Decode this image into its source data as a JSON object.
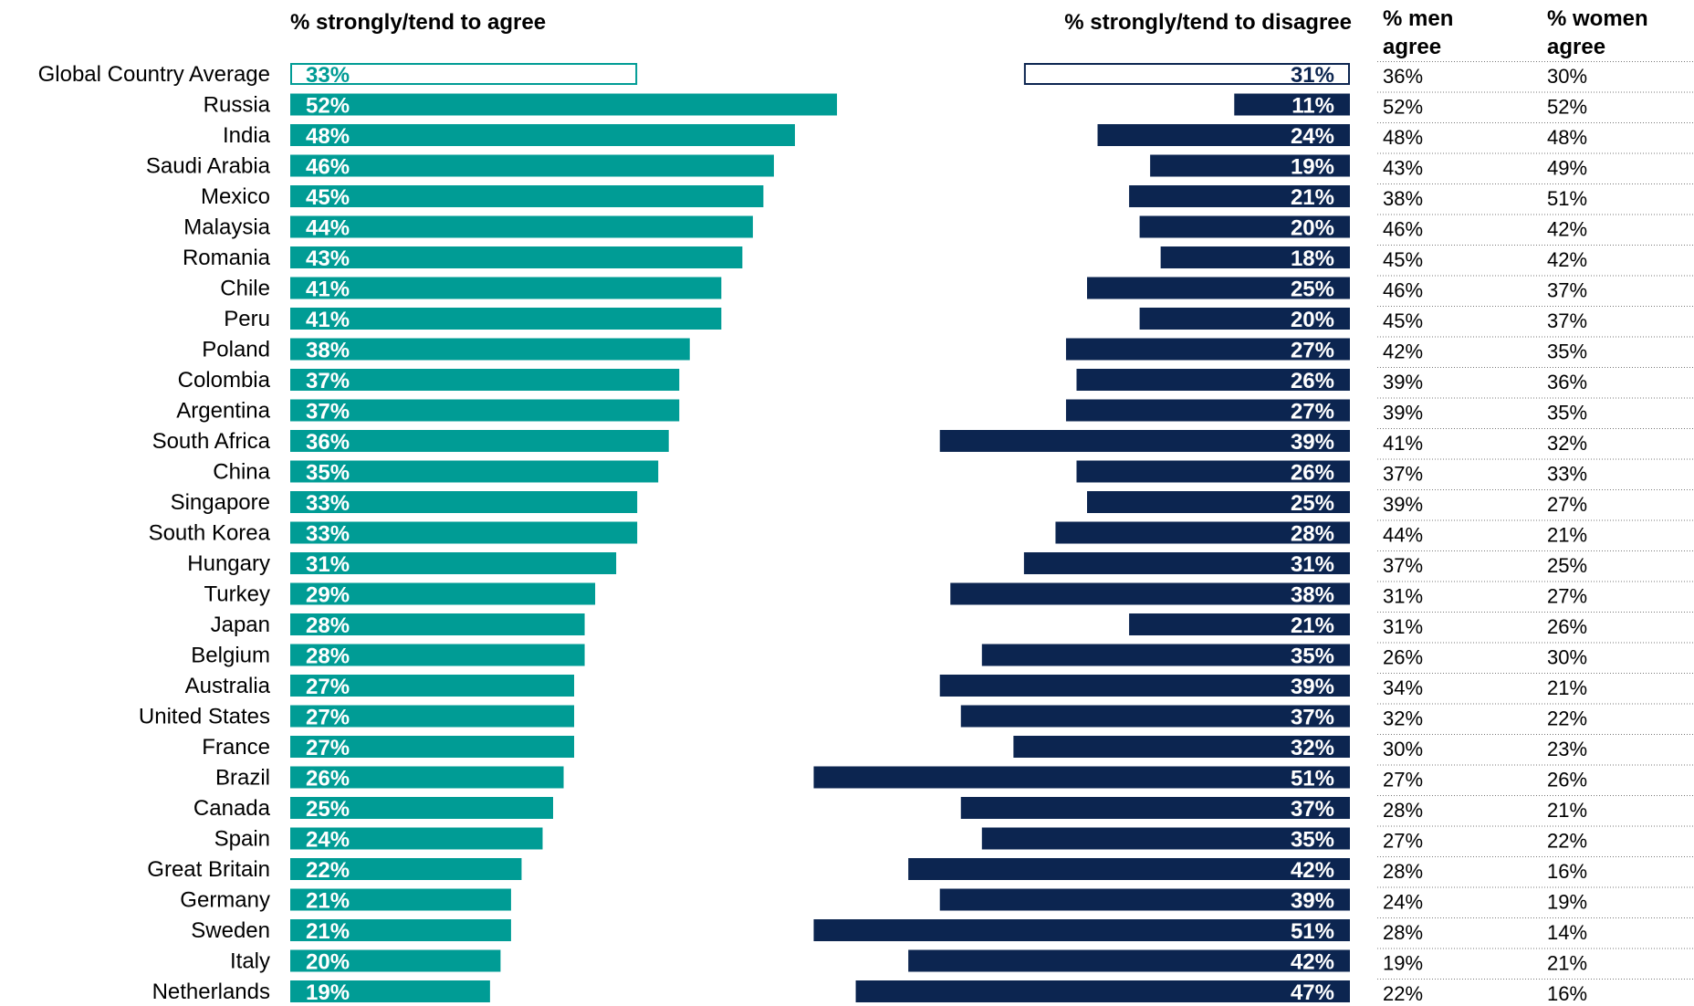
{
  "chart_data": {
    "type": "bar",
    "headers": {
      "agree": "% strongly/tend to agree",
      "disagree": "% strongly/tend to disagree",
      "men": [
        "% men",
        "agree"
      ],
      "women": [
        "% women",
        "agree"
      ]
    },
    "categories": [
      "Global Country Average",
      "Russia",
      "India",
      "Saudi Arabia",
      "Mexico",
      "Malaysia",
      "Romania",
      "Chile",
      "Peru",
      "Poland",
      "Colombia",
      "Argentina",
      "South Africa",
      "China",
      "Singapore",
      "South Korea",
      "Hungary",
      "Turkey",
      "Japan",
      "Belgium",
      "Australia",
      "United States",
      "France",
      "Brazil",
      "Canada",
      "Spain",
      "Great Britain",
      "Germany",
      "Sweden",
      "Italy",
      "Netherlands"
    ],
    "agree": [
      33,
      52,
      48,
      46,
      45,
      44,
      43,
      41,
      41,
      38,
      37,
      37,
      36,
      35,
      33,
      33,
      31,
      29,
      28,
      28,
      27,
      27,
      27,
      26,
      25,
      24,
      22,
      21,
      21,
      20,
      19
    ],
    "disagree": [
      31,
      11,
      24,
      19,
      21,
      20,
      18,
      25,
      20,
      27,
      26,
      27,
      39,
      26,
      25,
      28,
      31,
      38,
      21,
      35,
      39,
      37,
      32,
      51,
      37,
      35,
      42,
      39,
      51,
      42,
      47
    ],
    "men_agree": [
      36,
      52,
      48,
      43,
      38,
      46,
      45,
      46,
      45,
      42,
      39,
      39,
      41,
      37,
      39,
      44,
      37,
      31,
      31,
      26,
      34,
      32,
      30,
      27,
      28,
      27,
      28,
      24,
      28,
      19,
      22
    ],
    "women_agree": [
      30,
      52,
      48,
      49,
      51,
      42,
      42,
      37,
      37,
      35,
      36,
      35,
      32,
      33,
      27,
      21,
      25,
      27,
      26,
      30,
      21,
      22,
      23,
      26,
      21,
      22,
      16,
      19,
      14,
      21,
      16
    ],
    "highlight_first_row": true,
    "colors": {
      "agree": "#009C95",
      "disagree": "#0C2550",
      "highlight_border": "#0C2550",
      "agree_outline": "#009C95",
      "grid": "#777777"
    }
  }
}
